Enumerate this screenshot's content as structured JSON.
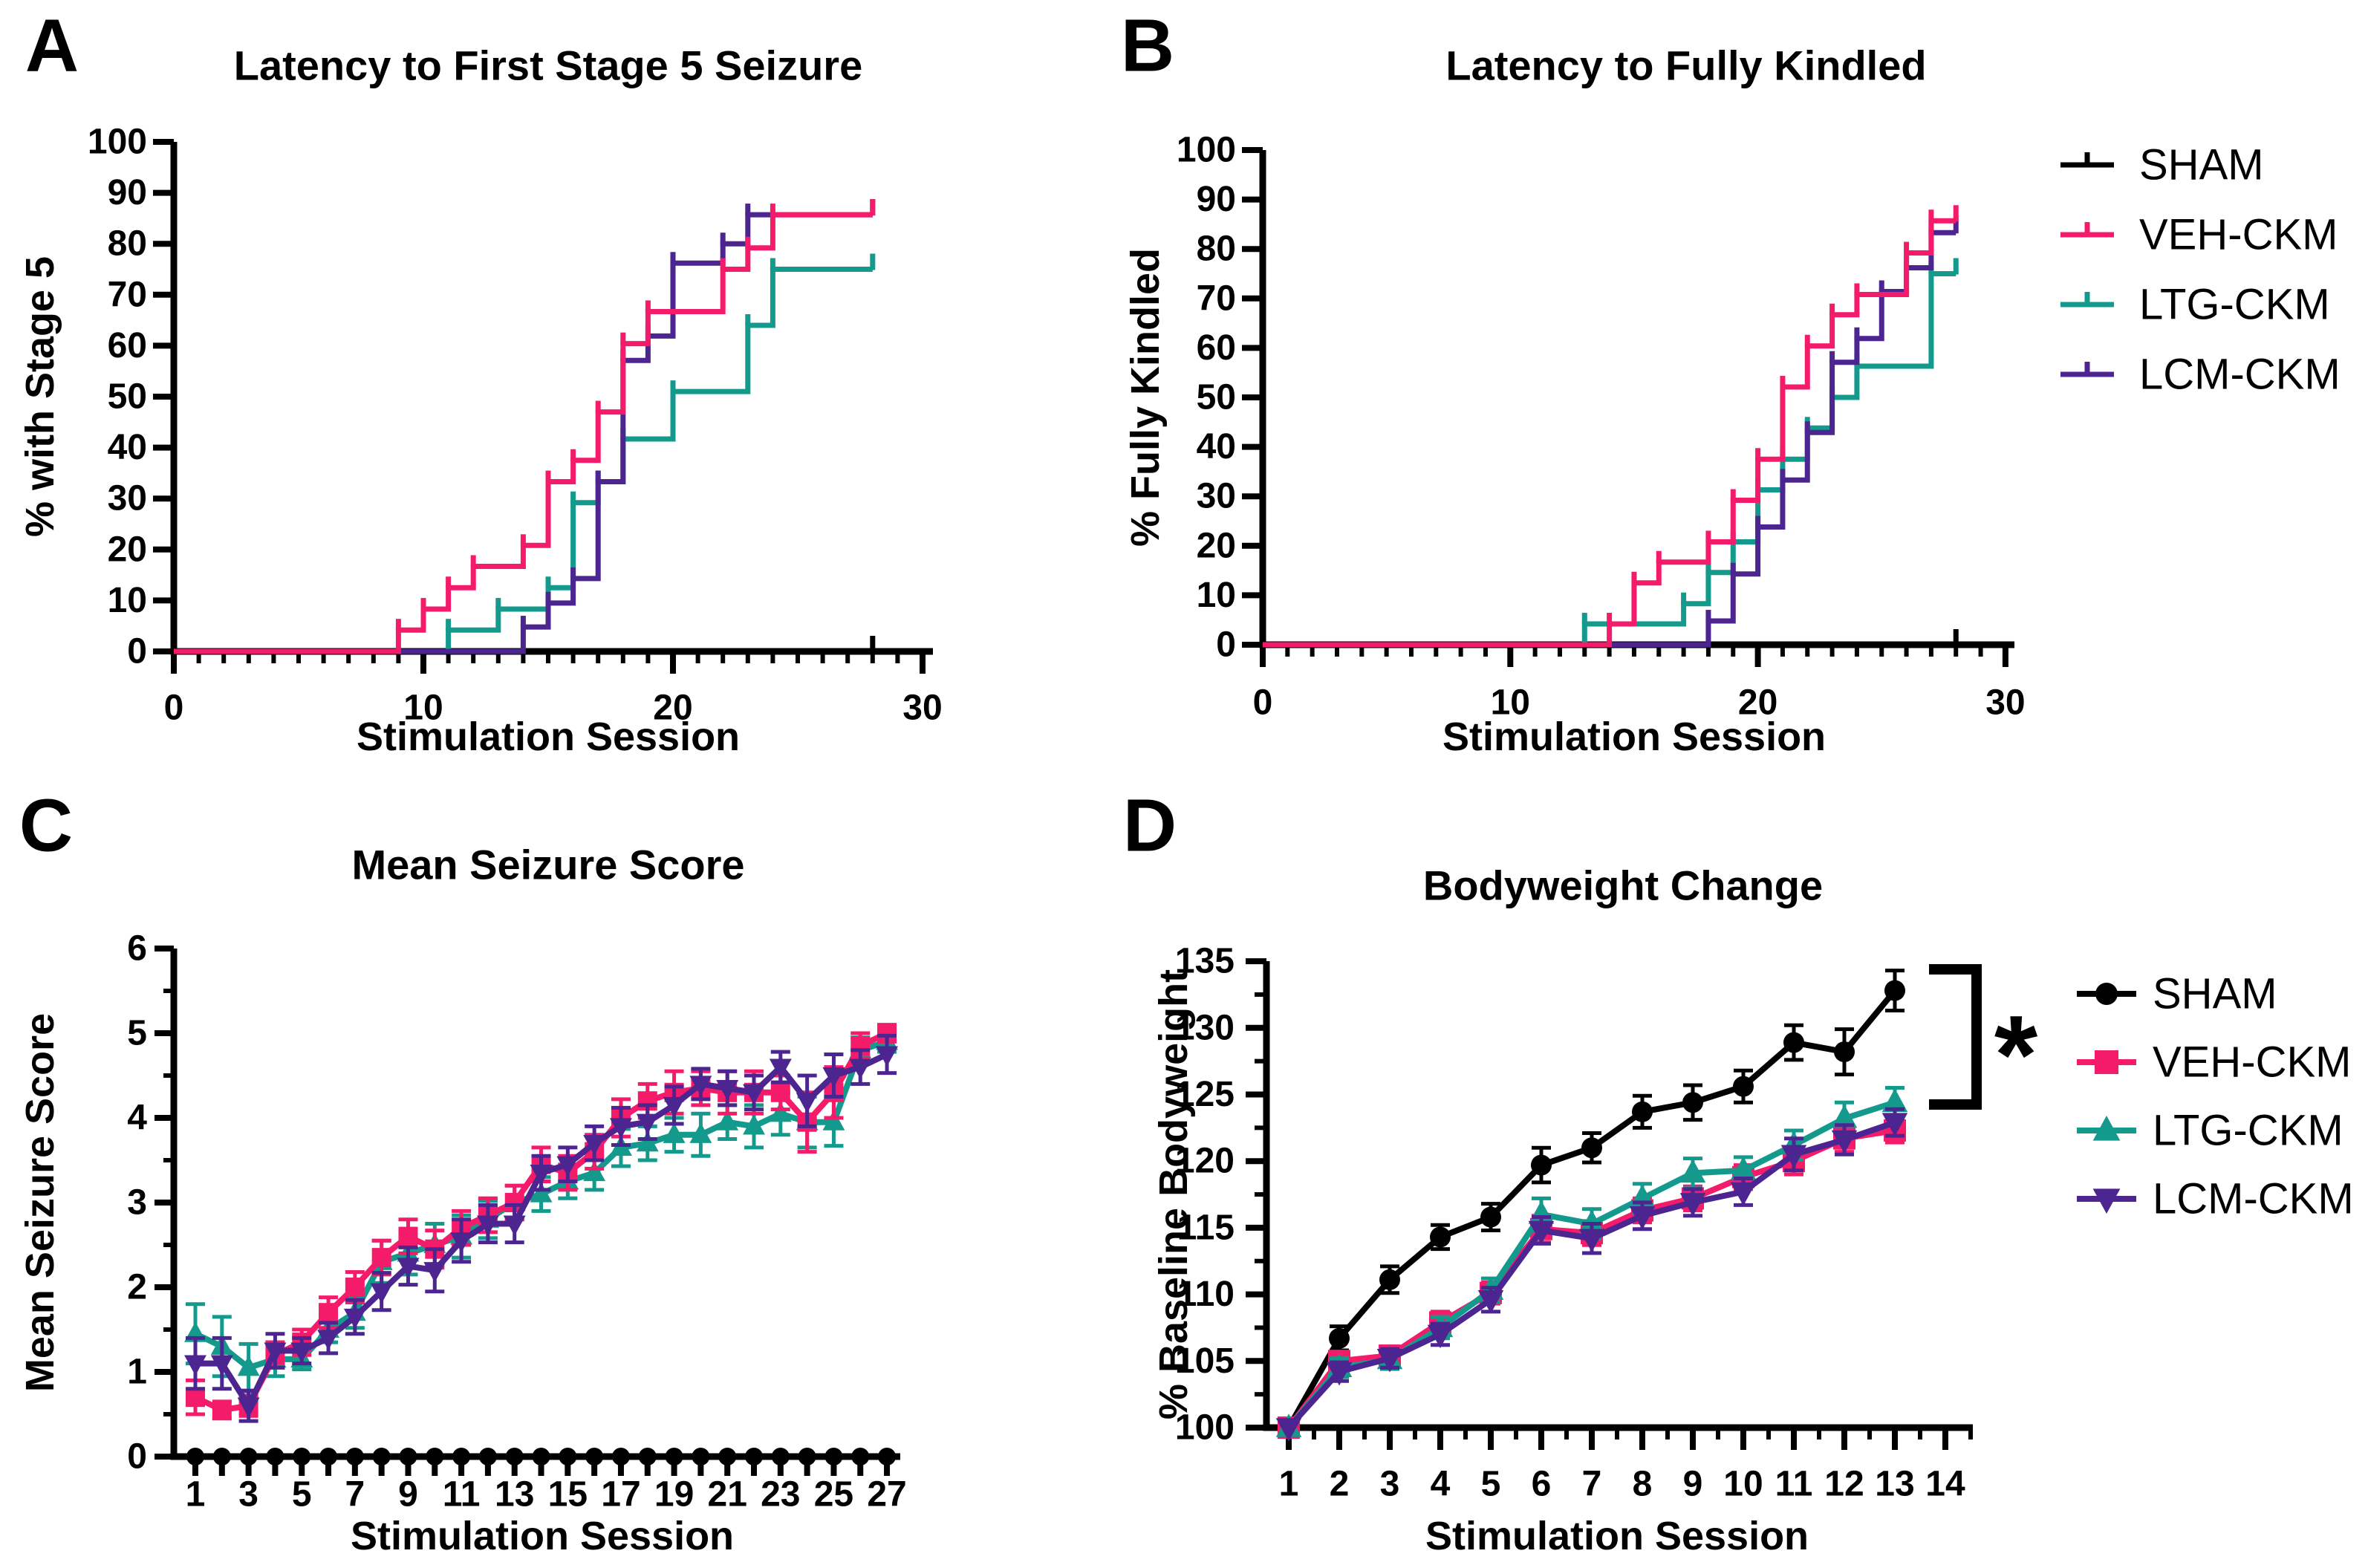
{
  "colors": {
    "sham": "#000000",
    "veh": "#F41C6A",
    "ltg": "#149A8D",
    "lcm": "#4C2590",
    "axis": "#000000",
    "background": "#FFFFFF"
  },
  "legend": {
    "entries": [
      {
        "label": "SHAM",
        "color": "sham",
        "marker": "circle"
      },
      {
        "label": "VEH-CKM",
        "color": "veh",
        "marker": "square"
      },
      {
        "label": "LTG-CKM",
        "color": "ltg",
        "marker": "triangle-up"
      },
      {
        "label": "LCM-CKM",
        "color": "lcm",
        "marker": "triangle-down"
      }
    ]
  },
  "annotation": {
    "significance": "*"
  },
  "chart_data": [
    {
      "id": "A",
      "panel_letter": "A",
      "type": "step",
      "title": "Latency to First Stage 5 Seizure",
      "xlabel": "Stimulation Session",
      "ylabel": "% with Stage 5",
      "xlim": [
        0,
        30
      ],
      "ylim": [
        0,
        100
      ],
      "curves_end": 28,
      "axes": {
        "x": {
          "major": [
            0,
            10,
            20,
            30
          ],
          "labels": [
            "0",
            "10",
            "20",
            "30"
          ],
          "minor": [
            1,
            2,
            3,
            4,
            5,
            6,
            7,
            8,
            9,
            11,
            12,
            13,
            14,
            15,
            16,
            17,
            18,
            19,
            21,
            22,
            23,
            24,
            25,
            26,
            27,
            28,
            29
          ]
        },
        "y": {
          "major": [
            0,
            10,
            20,
            30,
            40,
            50,
            60,
            70,
            80,
            90,
            100
          ],
          "labels": [
            "0",
            "10",
            "20",
            "30",
            "40",
            "50",
            "60",
            "70",
            "80",
            "90",
            "100"
          ],
          "minor": []
        }
      },
      "series": [
        {
          "name": "SHAM",
          "color": "sham",
          "steps": []
        },
        {
          "name": "LTG-CKM",
          "color": "ltg",
          "steps": [
            [
              11,
              4.2
            ],
            [
              13,
              8.3
            ],
            [
              15,
              12.5
            ],
            [
              16,
              29.2
            ],
            [
              17,
              33.3
            ],
            [
              18,
              41.7
            ],
            [
              20,
              51
            ],
            [
              23,
              64
            ],
            [
              24,
              75
            ]
          ]
        },
        {
          "name": "LCM-CKM",
          "color": "lcm",
          "steps": [
            [
              14,
              4.8
            ],
            [
              15,
              9.5
            ],
            [
              16,
              14.3
            ],
            [
              17,
              33.3
            ],
            [
              18,
              57.1
            ],
            [
              19,
              61.9
            ],
            [
              20,
              76.2
            ],
            [
              22,
              80
            ],
            [
              23,
              85.7
            ]
          ]
        },
        {
          "name": "VEH-CKM",
          "color": "veh",
          "steps": [
            [
              9,
              4.2
            ],
            [
              10,
              8.3
            ],
            [
              11,
              12.5
            ],
            [
              12,
              16.7
            ],
            [
              14,
              20.8
            ],
            [
              15,
              33.3
            ],
            [
              16,
              37.5
            ],
            [
              17,
              47
            ],
            [
              18,
              60.4
            ],
            [
              19,
              66.7
            ],
            [
              22,
              75
            ],
            [
              23,
              79.2
            ],
            [
              24,
              85.7
            ]
          ]
        }
      ]
    },
    {
      "id": "B",
      "panel_letter": "B",
      "type": "step",
      "title": "Latency to Fully Kindled",
      "xlabel": "Stimulation Session",
      "ylabel": "% Fully Kindled",
      "xlim": [
        0,
        30
      ],
      "ylim": [
        0,
        100
      ],
      "curves_end": 28,
      "axes": {
        "x": {
          "major": [
            0,
            10,
            20,
            30
          ],
          "labels": [
            "0",
            "10",
            "20",
            "30"
          ],
          "minor": [
            1,
            2,
            3,
            4,
            5,
            6,
            7,
            8,
            9,
            11,
            12,
            13,
            14,
            15,
            16,
            17,
            18,
            19,
            21,
            22,
            23,
            24,
            25,
            26,
            27,
            28,
            29
          ]
        },
        "y": {
          "major": [
            0,
            10,
            20,
            30,
            40,
            50,
            60,
            70,
            80,
            90,
            100
          ],
          "labels": [
            "0",
            "10",
            "20",
            "30",
            "40",
            "50",
            "60",
            "70",
            "80",
            "90",
            "100"
          ],
          "minor": []
        }
      },
      "series": [
        {
          "name": "SHAM",
          "color": "sham",
          "steps": []
        },
        {
          "name": "LTG-CKM",
          "color": "ltg",
          "steps": [
            [
              13,
              4.2
            ],
            [
              17,
              8.3
            ],
            [
              18,
              14.6
            ],
            [
              19,
              20.8
            ],
            [
              20,
              31.3
            ],
            [
              21,
              37.5
            ],
            [
              22,
              43.8
            ],
            [
              23,
              50
            ],
            [
              24,
              56.3
            ],
            [
              27,
              75
            ]
          ]
        },
        {
          "name": "LCM-CKM",
          "color": "lcm",
          "steps": [
            [
              18,
              4.8
            ],
            [
              19,
              14.3
            ],
            [
              20,
              23.8
            ],
            [
              21,
              33.3
            ],
            [
              22,
              42.9
            ],
            [
              23,
              57.1
            ],
            [
              24,
              61.9
            ],
            [
              25,
              71.4
            ],
            [
              26,
              76.2
            ],
            [
              27,
              83.3
            ]
          ]
        },
        {
          "name": "VEH-CKM",
          "color": "veh",
          "steps": [
            [
              14,
              4.2
            ],
            [
              15,
              12.5
            ],
            [
              16,
              16.7
            ],
            [
              18,
              20.8
            ],
            [
              19,
              29.2
            ],
            [
              20,
              37.5
            ],
            [
              21,
              52.1
            ],
            [
              22,
              60.4
            ],
            [
              23,
              66.7
            ],
            [
              24,
              70.8
            ],
            [
              26,
              79.2
            ],
            [
              27,
              85.7
            ]
          ]
        }
      ]
    },
    {
      "id": "C",
      "panel_letter": "C",
      "type": "line",
      "title": "Mean Seizure Score",
      "xlabel": "Stimulation Session",
      "ylabel": "Mean Seizure Score",
      "xlim": [
        1,
        27
      ],
      "ylim": [
        0,
        6
      ],
      "x": [
        1,
        2,
        3,
        4,
        5,
        6,
        7,
        8,
        9,
        10,
        11,
        12,
        13,
        14,
        15,
        16,
        17,
        18,
        19,
        20,
        21,
        22,
        23,
        24,
        25,
        26,
        27
      ],
      "axes": {
        "x": {
          "major": [
            1,
            2,
            3,
            4,
            5,
            6,
            7,
            8,
            9,
            10,
            11,
            12,
            13,
            14,
            15,
            16,
            17,
            18,
            19,
            20,
            21,
            22,
            23,
            24,
            25,
            26,
            27
          ],
          "labels": [
            "1",
            "",
            "3",
            "",
            "5",
            "",
            "7",
            "",
            "9",
            "",
            "11",
            "",
            "13",
            "",
            "15",
            "",
            "17",
            "",
            "19",
            "",
            "21",
            "",
            "23",
            "",
            "25",
            "",
            "27"
          ],
          "minor": []
        },
        "y": {
          "major": [
            0,
            1,
            2,
            3,
            4,
            5,
            6
          ],
          "labels": [
            "0",
            "1",
            "2",
            "3",
            "4",
            "5",
            "6"
          ],
          "minor": [
            0.5,
            1.5,
            2.5,
            3.5,
            4.5,
            5.5
          ]
        }
      },
      "series": [
        {
          "name": "SHAM",
          "color": "sham",
          "marker": "circle",
          "values": [
            0,
            0,
            0,
            0,
            0,
            0,
            0,
            0,
            0,
            0,
            0,
            0,
            0,
            0,
            0,
            0,
            0,
            0,
            0,
            0,
            0,
            0,
            0,
            0,
            0,
            0,
            0
          ],
          "err": [
            0,
            0,
            0,
            0,
            0,
            0,
            0,
            0,
            0,
            0,
            0,
            0,
            0,
            0,
            0,
            0,
            0,
            0,
            0,
            0,
            0,
            0,
            0,
            0,
            0,
            0,
            0
          ]
        },
        {
          "name": "LTG-CKM",
          "color": "ltg",
          "marker": "triangle-up",
          "values": [
            1.45,
            1.3,
            1.05,
            1.15,
            1.15,
            1.5,
            1.7,
            2.3,
            2.4,
            2.5,
            2.6,
            2.8,
            3.0,
            3.1,
            3.25,
            3.35,
            3.65,
            3.7,
            3.8,
            3.8,
            3.95,
            3.9,
            4.05,
            3.95,
            3.95,
            4.8,
            4.9
          ],
          "err": [
            0.35,
            0.35,
            0.28,
            0.2,
            0.12,
            0.15,
            0.18,
            0.25,
            0.25,
            0.25,
            0.25,
            0.22,
            0.2,
            0.2,
            0.2,
            0.2,
            0.22,
            0.2,
            0.2,
            0.25,
            0.2,
            0.25,
            0.25,
            0.3,
            0.28,
            0.15,
            0.12
          ]
        },
        {
          "name": "VEH-CKM",
          "color": "veh",
          "marker": "square",
          "values": [
            0.7,
            0.55,
            0.6,
            1.2,
            1.35,
            1.7,
            2.0,
            2.35,
            2.6,
            2.45,
            2.7,
            2.85,
            3.0,
            3.45,
            3.35,
            3.6,
            4.0,
            4.2,
            4.3,
            4.35,
            4.3,
            4.3,
            4.3,
            3.95,
            4.3,
            4.85,
            5.0
          ],
          "err": [
            0.2,
            0.1,
            0.12,
            0.15,
            0.15,
            0.18,
            0.18,
            0.2,
            0.2,
            0.22,
            0.2,
            0.2,
            0.2,
            0.2,
            0.2,
            0.2,
            0.22,
            0.2,
            0.25,
            0.2,
            0.25,
            0.25,
            0.2,
            0.35,
            0.3,
            0.15,
            0.1
          ]
        },
        {
          "name": "LCM-CKM",
          "color": "lcm",
          "marker": "triangle-down",
          "values": [
            1.1,
            1.1,
            0.6,
            1.25,
            1.25,
            1.4,
            1.65,
            1.95,
            2.25,
            2.2,
            2.55,
            2.75,
            2.75,
            3.35,
            3.45,
            3.7,
            3.9,
            3.95,
            4.15,
            4.4,
            4.35,
            4.3,
            4.6,
            4.2,
            4.5,
            4.6,
            4.75
          ],
          "err": [
            0.3,
            0.3,
            0.18,
            0.2,
            0.15,
            0.18,
            0.2,
            0.22,
            0.22,
            0.25,
            0.25,
            0.22,
            0.22,
            0.2,
            0.2,
            0.2,
            0.22,
            0.2,
            0.22,
            0.18,
            0.2,
            0.2,
            0.18,
            0.3,
            0.25,
            0.2,
            0.22
          ]
        }
      ]
    },
    {
      "id": "D",
      "panel_letter": "D",
      "type": "line",
      "title": "Bodyweight Change",
      "xlabel": "Stimulation Session",
      "ylabel": "% Baseline Bodyweight",
      "xlim": [
        1,
        14
      ],
      "ylim": [
        100,
        135
      ],
      "significance": "*",
      "x": [
        1,
        2,
        3,
        4,
        5,
        6,
        7,
        8,
        9,
        10,
        11,
        12,
        13
      ],
      "axes": {
        "x": {
          "major": [
            1,
            2,
            3,
            4,
            5,
            6,
            7,
            8,
            9,
            10,
            11,
            12,
            13,
            14
          ],
          "labels": [
            "1",
            "2",
            "3",
            "4",
            "5",
            "6",
            "7",
            "8",
            "9",
            "10",
            "11",
            "12",
            "13",
            "14"
          ],
          "minor": [
            1.5,
            2.5,
            3.5,
            4.5,
            5.5,
            6.5,
            7.5,
            8.5,
            9.5,
            10.5,
            11.5,
            12.5,
            13.5,
            14.5
          ]
        },
        "y": {
          "major": [
            100,
            105,
            110,
            115,
            120,
            125,
            130,
            135
          ],
          "labels": [
            "100",
            "105",
            "110",
            "115",
            "120",
            "125",
            "130",
            "135"
          ],
          "minor": [
            102.5,
            107.5,
            112.5,
            117.5,
            122.5,
            127.5,
            132.5
          ]
        }
      },
      "series": [
        {
          "name": "SHAM",
          "color": "sham",
          "marker": "circle",
          "values": [
            100,
            106.7,
            111.1,
            114.3,
            115.8,
            119.7,
            121.0,
            123.7,
            124.4,
            125.6,
            128.9,
            128.2,
            132.8
          ],
          "err": [
            0,
            0.9,
            1.0,
            0.9,
            1.0,
            1.3,
            1.1,
            1.2,
            1.3,
            1.2,
            1.3,
            1.7,
            1.5
          ]
        },
        {
          "name": "VEH-CKM",
          "color": "veh",
          "marker": "square",
          "values": [
            100,
            105.0,
            105.4,
            107.9,
            110.1,
            114.9,
            114.6,
            116.3,
            117.2,
            118.8,
            120.0,
            121.7,
            122.3
          ],
          "err": [
            0,
            0.7,
            0.7,
            0.8,
            0.8,
            1.0,
            0.9,
            0.9,
            0.9,
            0.9,
            1.0,
            1.0,
            0.9
          ]
        },
        {
          "name": "LTG-CKM",
          "color": "ltg",
          "marker": "triangle-up",
          "values": [
            100,
            104.5,
            105.1,
            107.5,
            110.3,
            116.0,
            115.3,
            117.2,
            119.1,
            119.3,
            121.2,
            123.2,
            124.4
          ],
          "err": [
            0,
            0.7,
            0.7,
            0.8,
            0.9,
            1.2,
            1.1,
            1.1,
            1.1,
            1.0,
            1.1,
            1.2,
            1.1
          ]
        },
        {
          "name": "LCM-CKM",
          "color": "lcm",
          "marker": "triangle-down",
          "values": [
            100,
            104.2,
            105.2,
            107.0,
            109.6,
            114.8,
            114.2,
            115.9,
            116.9,
            117.7,
            120.5,
            121.6,
            122.9
          ],
          "err": [
            0,
            0.7,
            0.7,
            0.8,
            0.9,
            1.0,
            1.1,
            1.0,
            1.0,
            1.0,
            1.2,
            1.1,
            1.0
          ]
        }
      ]
    }
  ]
}
